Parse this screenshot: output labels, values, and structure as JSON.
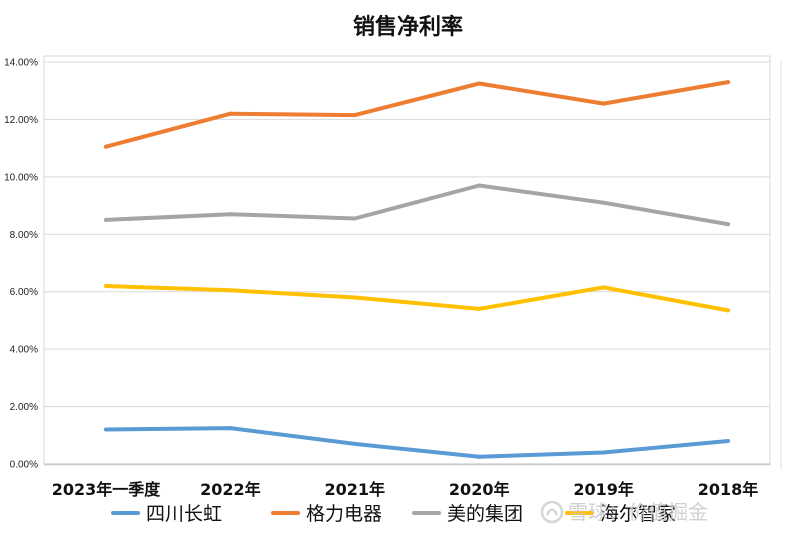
{
  "chart_data": {
    "type": "line",
    "title": "销售净利率",
    "categories": [
      "2023年一季度",
      "2022年",
      "2021年",
      "2020年",
      "2019年",
      "2018年"
    ],
    "y_ticks": [
      "0.00%",
      "2.00%",
      "4.00%",
      "6.00%",
      "8.00%",
      "10.00%",
      "12.00%",
      "14.00%"
    ],
    "ylim": [
      0,
      14
    ],
    "y_unit": "%",
    "grid": true,
    "legend_position": "bottom",
    "series": [
      {
        "name": "四川长虹",
        "color": "#5b9bd5",
        "values": [
          1.2,
          1.25,
          0.7,
          0.25,
          0.4,
          0.8
        ]
      },
      {
        "name": "格力电器",
        "color": "#ed7d31",
        "values": [
          11.05,
          12.2,
          12.15,
          13.25,
          12.55,
          13.3
        ]
      },
      {
        "name": "美的集团",
        "color": "#a5a5a5",
        "values": [
          8.5,
          8.7,
          8.55,
          9.7,
          9.1,
          8.35
        ]
      },
      {
        "name": "海尔智家",
        "color": "#ffc000",
        "values": [
          6.2,
          6.05,
          5.8,
          5.4,
          6.15,
          5.35
        ]
      }
    ]
  },
  "watermark": {
    "text": "雪球：价值掘金",
    "icon": "snowball-logo-icon"
  }
}
